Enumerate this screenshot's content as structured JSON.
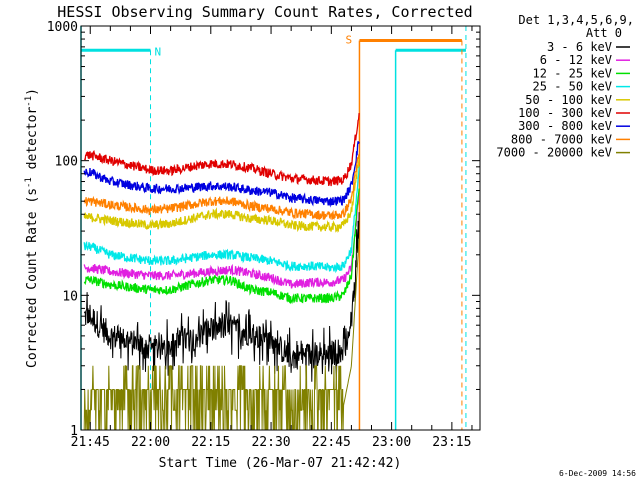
{
  "chart_data": {
    "type": "line",
    "title": "HESSI Observing Summary Count Rates, Corrected",
    "xlabel": "Start Time (26-Mar-07 21:42:42)",
    "ylabel": "Corrected Count Rate (s⁻¹ detector⁻¹)",
    "ylabel_parts": {
      "main": "Corrected Count Rate (s",
      "sup1": "-1",
      "mid": " detector",
      "sup2": "-1",
      "end": ")"
    },
    "yscale": "log",
    "ylim": [
      1,
      1000
    ],
    "xlim": [
      "21:42:42",
      "23:22:00"
    ],
    "xticks": [
      "21:45",
      "22:00",
      "22:15",
      "22:30",
      "22:45",
      "23:00",
      "23:15"
    ],
    "yticks": [
      "1",
      "10",
      "100",
      "1000"
    ],
    "legend_header": [
      "Det 1,3,4,5,6,9,",
      "Att 0"
    ],
    "legend_position": "right",
    "footer_date": "6-Dec-2009 14:56",
    "series": [
      {
        "name": "3 - 6 keV",
        "color": "#000000",
        "times": [
          "21:45",
          "21:50",
          "22:00",
          "22:05",
          "22:10",
          "22:15",
          "22:20",
          "22:25",
          "22:30",
          "22:35",
          "22:40",
          "22:45",
          "22:48",
          "22:50",
          "22:52"
        ],
        "values": [
          7,
          5,
          4,
          4.2,
          4.8,
          5.5,
          5.8,
          5.2,
          4.5,
          3.5,
          3.6,
          3.7,
          4.0,
          6,
          40
        ]
      },
      {
        "name": "6 - 12 keV",
        "color": "#e020e0",
        "times": [
          "21:45",
          "21:50",
          "22:00",
          "22:05",
          "22:10",
          "22:15",
          "22:20",
          "22:25",
          "22:30",
          "22:35",
          "22:40",
          "22:45",
          "22:48",
          "22:50",
          "22:52"
        ],
        "values": [
          16,
          15,
          14,
          14,
          14.5,
          15,
          15.5,
          14.5,
          13.5,
          12,
          12.5,
          12.5,
          13,
          16,
          60
        ]
      },
      {
        "name": "12 - 25 keV",
        "color": "#00e000",
        "times": [
          "21:45",
          "21:50",
          "22:00",
          "22:05",
          "22:10",
          "22:15",
          "22:20",
          "22:25",
          "22:30",
          "22:35",
          "22:40",
          "22:45",
          "22:48",
          "22:50",
          "22:52"
        ],
        "values": [
          13,
          12,
          11,
          11,
          12,
          13,
          13,
          11,
          10.5,
          9.5,
          9.5,
          9.5,
          10,
          14,
          70
        ]
      },
      {
        "name": "25 - 50 keV",
        "color": "#00e8e8",
        "times": [
          "21:45",
          "21:50",
          "22:00",
          "22:05",
          "22:10",
          "22:15",
          "22:20",
          "22:25",
          "22:30",
          "22:35",
          "22:40",
          "22:45",
          "22:48",
          "22:50",
          "22:52"
        ],
        "values": [
          23,
          20,
          18,
          18,
          19,
          20,
          20,
          19,
          18,
          16.5,
          16.5,
          16,
          16.5,
          22,
          90
        ]
      },
      {
        "name": "50 - 100 keV",
        "color": "#d8c800",
        "times": [
          "21:45",
          "21:50",
          "22:00",
          "22:05",
          "22:10",
          "22:15",
          "22:20",
          "22:25",
          "22:30",
          "22:35",
          "22:40",
          "22:45",
          "22:48",
          "22:50",
          "22:52"
        ],
        "values": [
          38,
          36,
          33,
          34,
          37,
          40,
          40,
          37,
          36,
          33,
          32.5,
          32,
          33,
          42,
          110
        ]
      },
      {
        "name": "100 - 300 keV",
        "color": "#e00000",
        "times": [
          "21:45",
          "21:50",
          "22:00",
          "22:05",
          "22:10",
          "22:15",
          "22:20",
          "22:25",
          "22:30",
          "22:35",
          "22:40",
          "22:45",
          "22:48",
          "22:50",
          "22:52"
        ],
        "values": [
          110,
          100,
          85,
          84,
          90,
          95,
          94,
          88,
          80,
          74,
          72,
          70,
          72,
          95,
          230
        ]
      },
      {
        "name": "300 - 800 keV",
        "color": "#0000e0",
        "times": [
          "21:45",
          "21:50",
          "22:00",
          "22:05",
          "22:10",
          "22:15",
          "22:20",
          "22:25",
          "22:30",
          "22:35",
          "22:40",
          "22:45",
          "22:48",
          "22:50",
          "22:52"
        ],
        "values": [
          82,
          70,
          62,
          62,
          63,
          65,
          64,
          60,
          58,
          53,
          51,
          50,
          51,
          65,
          150
        ]
      },
      {
        "name": "800 - 7000 keV",
        "color": "#ff8000",
        "times": [
          "21:45",
          "21:50",
          "22:00",
          "22:05",
          "22:10",
          "22:15",
          "22:20",
          "22:25",
          "22:30",
          "22:35",
          "22:40",
          "22:45",
          "22:48",
          "22:50",
          "22:52"
        ],
        "values": [
          50,
          47,
          43,
          44,
          47,
          50,
          50,
          46,
          44,
          41,
          40,
          39,
          40,
          52,
          120
        ]
      },
      {
        "name": "7000 - 20000 keV",
        "color": "#808000",
        "times": [
          "21:45",
          "21:50",
          "22:00",
          "22:05",
          "22:10",
          "22:15",
          "22:20",
          "22:25",
          "22:30",
          "22:35",
          "22:40",
          "22:45",
          "22:48",
          "22:50",
          "22:52"
        ],
        "values": [
          1.5,
          1.5,
          1.4,
          1.5,
          1.6,
          1.7,
          1.6,
          1.5,
          1.5,
          1.4,
          1.4,
          1.4,
          1.5,
          3,
          30
        ]
      }
    ],
    "annotations": [
      {
        "label": "N",
        "color": "#00e0e0"
      },
      {
        "label": "S",
        "color": "#ff8000"
      }
    ]
  }
}
